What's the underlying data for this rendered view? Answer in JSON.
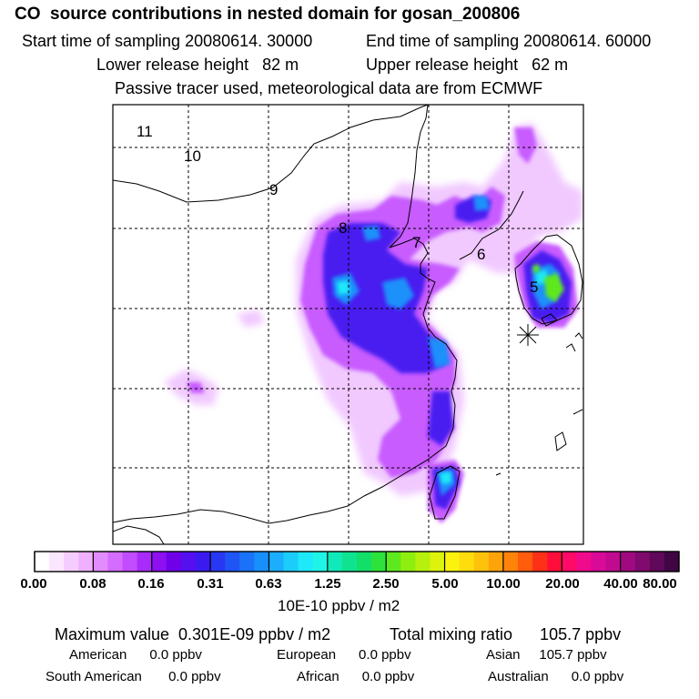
{
  "header": {
    "title": "CO  source contributions in nested domain for gosan_200806",
    "start_label": "Start time of sampling 20080614. 30000",
    "end_label": "End time of sampling 20080614. 60000",
    "lower_label": "Lower release height   82 m",
    "upper_label": "Upper release height   62 m",
    "note": "Passive tracer used, meteorological data are from ECMWF"
  },
  "trajectory_labels": [
    "11",
    "10",
    "9",
    "8",
    "7",
    "6",
    "5"
  ],
  "colorbar": {
    "ticks": [
      "0.00",
      "0.08",
      "0.16",
      "0.31",
      "0.63",
      "1.25",
      "2.50",
      "5.00",
      "10.00",
      "20.00",
      "40.00",
      "80.00"
    ],
    "colors": [
      "#ffffff",
      "#fbe6ff",
      "#f5ccff",
      "#eeb0ff",
      "#e28cff",
      "#d36cff",
      "#c24cff",
      "#a82bfa",
      "#8c10f0",
      "#6f00e8",
      "#5410ee",
      "#3a1aee",
      "#2838f2",
      "#1f55f5",
      "#1a72f8",
      "#1890fb",
      "#1aaefc",
      "#1ccdfb",
      "#1ee9fa",
      "#1ff4e6",
      "#10eab8",
      "#10e390",
      "#12df6a",
      "#2ee23c",
      "#5ee81e",
      "#8eee10",
      "#b6f00c",
      "#ddf30b",
      "#fbf20e",
      "#ffdc0c",
      "#ffc20a",
      "#ffa30a",
      "#ff830b",
      "#ff5c0c",
      "#ff3018",
      "#ff0e3a",
      "#ff0a66",
      "#f00a8c",
      "#d80a98",
      "#c00a90",
      "#a00a80",
      "#800a6e",
      "#60085a",
      "#400644"
    ],
    "unit": "10E-10 ppbv / m2"
  },
  "footer": {
    "max_label": "Maximum value  0.301E-09 ppbv / m2",
    "total_label": "Total mixing ratio      105.7 ppbv",
    "american": "American      0.0 ppbv",
    "european": "European      0.0 ppbv",
    "asian": "Asian     105.7 ppbv",
    "south_american": "South American       0.0 ppbv",
    "african": "African      0.0 ppbv",
    "australian": "Australian      0.0 ppbv"
  }
}
